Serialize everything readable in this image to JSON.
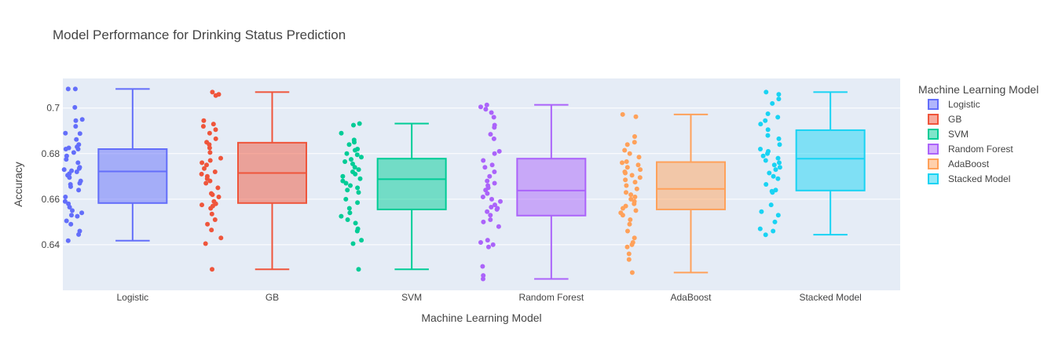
{
  "chart_data": {
    "type": "box",
    "title": "Model Performance for Drinking Status Prediction",
    "xlabel": "Machine Learning Model",
    "ylabel": "Accuracy",
    "ylim": [
      0.62,
      0.713
    ],
    "yticks": [
      0.64,
      0.66,
      0.68,
      0.7
    ],
    "ytick_labels": [
      "0.64",
      "0.66",
      "0.68",
      "0.7"
    ],
    "grid": true,
    "legend_title": "Machine Learning Model",
    "legend_position": "right",
    "categories": [
      "Logistic",
      "GB",
      "SVM",
      "Random Forest",
      "AdaBoost",
      "Stacked Model"
    ],
    "series": [
      {
        "name": "Logistic",
        "color": "#636efa",
        "min": 0.6418,
        "q1": 0.6583,
        "median": 0.6722,
        "q3": 0.682,
        "max": 0.7084,
        "points": [
          0.7084,
          0.7084,
          0.7003,
          0.695,
          0.6945,
          0.692,
          0.689,
          0.6888,
          0.6862,
          0.684,
          0.683,
          0.6825,
          0.682,
          0.682,
          0.6805,
          0.679,
          0.6775,
          0.676,
          0.674,
          0.6735,
          0.673,
          0.6725,
          0.672,
          0.6712,
          0.6705,
          0.6695,
          0.668,
          0.667,
          0.6665,
          0.6655,
          0.664,
          0.661,
          0.659,
          0.658,
          0.6565,
          0.655,
          0.654,
          0.653,
          0.6525,
          0.6505,
          0.649,
          0.646,
          0.6445,
          0.6418
        ]
      },
      {
        "name": "GB",
        "color": "#ef553b",
        "min": 0.6292,
        "q1": 0.6583,
        "median": 0.6715,
        "q3": 0.6848,
        "max": 0.707,
        "points": [
          0.707,
          0.706,
          0.7055,
          0.6945,
          0.693,
          0.692,
          0.6905,
          0.689,
          0.6865,
          0.685,
          0.684,
          0.6825,
          0.6805,
          0.678,
          0.677,
          0.676,
          0.675,
          0.6735,
          0.672,
          0.671,
          0.67,
          0.669,
          0.668,
          0.667,
          0.665,
          0.6625,
          0.662,
          0.661,
          0.659,
          0.658,
          0.6575,
          0.657,
          0.656,
          0.6535,
          0.651,
          0.649,
          0.6465,
          0.643,
          0.6405,
          0.6292
        ]
      },
      {
        "name": "SVM",
        "color": "#00cc96",
        "min": 0.6292,
        "q1": 0.6555,
        "median": 0.6688,
        "q3": 0.6778,
        "max": 0.6932,
        "points": [
          0.6932,
          0.6925,
          0.689,
          0.686,
          0.685,
          0.684,
          0.682,
          0.6815,
          0.68,
          0.6795,
          0.6785,
          0.6775,
          0.6765,
          0.6755,
          0.674,
          0.673,
          0.672,
          0.671,
          0.67,
          0.669,
          0.668,
          0.667,
          0.666,
          0.665,
          0.664,
          0.663,
          0.66,
          0.6585,
          0.656,
          0.654,
          0.6525,
          0.651,
          0.6495,
          0.647,
          0.646,
          0.642,
          0.6405,
          0.6292
        ]
      },
      {
        "name": "Random Forest",
        "color": "#ab63fa",
        "min": 0.625,
        "q1": 0.6528,
        "median": 0.6638,
        "q3": 0.6778,
        "max": 0.7014,
        "points": [
          0.7014,
          0.7005,
          0.6995,
          0.698,
          0.696,
          0.6925,
          0.6915,
          0.6885,
          0.6865,
          0.681,
          0.68,
          0.677,
          0.675,
          0.674,
          0.672,
          0.67,
          0.668,
          0.667,
          0.666,
          0.665,
          0.664,
          0.6625,
          0.661,
          0.66,
          0.659,
          0.6575,
          0.6565,
          0.656,
          0.6555,
          0.6545,
          0.653,
          0.651,
          0.65,
          0.648,
          0.642,
          0.641,
          0.64,
          0.639,
          0.6305,
          0.6265,
          0.625
        ]
      },
      {
        "name": "AdaBoost",
        "color": "#ffa15a",
        "min": 0.6278,
        "q1": 0.6555,
        "median": 0.6645,
        "q3": 0.6763,
        "max": 0.6972,
        "points": [
          0.6972,
          0.6962,
          0.6875,
          0.685,
          0.684,
          0.6815,
          0.68,
          0.6785,
          0.6765,
          0.676,
          0.675,
          0.674,
          0.673,
          0.672,
          0.6715,
          0.6705,
          0.6695,
          0.6685,
          0.6675,
          0.666,
          0.6645,
          0.663,
          0.662,
          0.661,
          0.66,
          0.659,
          0.658,
          0.657,
          0.656,
          0.655,
          0.654,
          0.653,
          0.651,
          0.649,
          0.646,
          0.643,
          0.641,
          0.64,
          0.639,
          0.636,
          0.6335,
          0.6278
        ]
      },
      {
        "name": "Stacked Model",
        "color": "#19d3f3",
        "min": 0.6444,
        "q1": 0.6638,
        "median": 0.6778,
        "q3": 0.6903,
        "max": 0.707,
        "points": [
          0.707,
          0.706,
          0.704,
          0.702,
          0.6975,
          0.696,
          0.6945,
          0.693,
          0.6905,
          0.688,
          0.6865,
          0.684,
          0.682,
          0.681,
          0.68,
          0.679,
          0.678,
          0.677,
          0.676,
          0.675,
          0.674,
          0.673,
          0.6715,
          0.67,
          0.669,
          0.6665,
          0.664,
          0.6635,
          0.663,
          0.6575,
          0.6545,
          0.653,
          0.65,
          0.647,
          0.646,
          0.6444
        ]
      }
    ]
  }
}
